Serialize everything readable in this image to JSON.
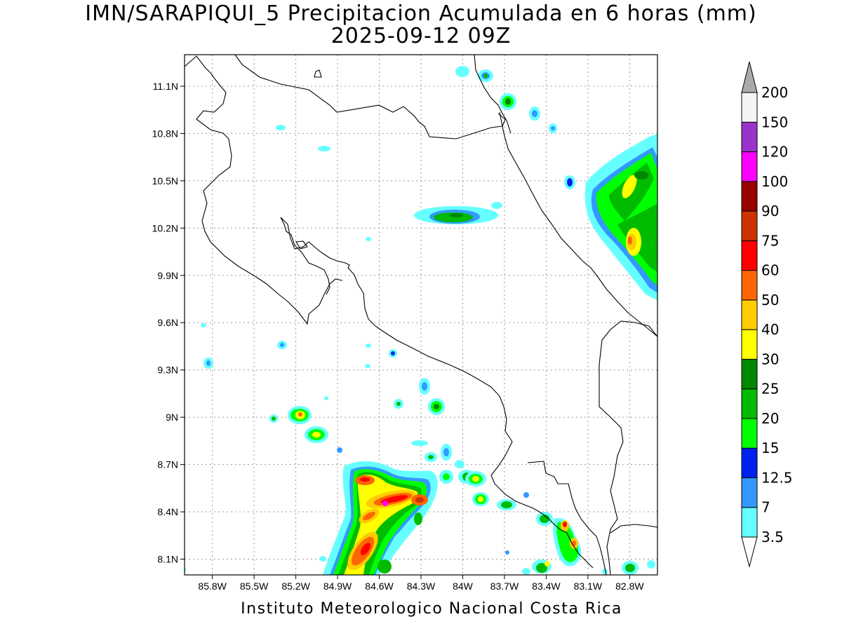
{
  "title_line1": "IMN/SARAPIQUI_5 Precipitacion Acumulada en 6 horas (mm)",
  "title_line2": "2025-09-12 09Z",
  "footer": "Instituto Meteorologico Nacional Costa Rica",
  "map": {
    "lon_range": [
      -86.0,
      -82.6
    ],
    "lat_range": [
      8.0,
      11.3
    ],
    "lat_ticks": [
      "11.1N",
      "10.8N",
      "10.5N",
      "10.2N",
      "9.9N",
      "9.6N",
      "9.3N",
      "9N",
      "8.7N",
      "8.4N",
      "8.1N"
    ],
    "lon_ticks": [
      "85.8W",
      "85.5W",
      "85.2W",
      "84.9W",
      "84.6W",
      "84.3W",
      "84W",
      "83.7W",
      "83.4W",
      "83.1W",
      "82.8W"
    ],
    "grid": "dotted",
    "variable": "6-hour accumulated precipitation (mm)"
  },
  "colorbar": {
    "levels": [
      "3.5",
      "7",
      "12.5",
      "15",
      "20",
      "25",
      "30",
      "40",
      "50",
      "60",
      "75",
      "90",
      "100",
      "120",
      "150",
      "200"
    ],
    "colors": [
      "#ffffff",
      "#66ffff",
      "#3399ff",
      "#0022ee",
      "#00ff00",
      "#00bb00",
      "#008800",
      "#ffff00",
      "#ffcc00",
      "#ff6600",
      "#ff0000",
      "#cc3300",
      "#990000",
      "#ff00ff",
      "#9933cc",
      "#f4f4f4",
      "#aaaaaa"
    ]
  }
}
